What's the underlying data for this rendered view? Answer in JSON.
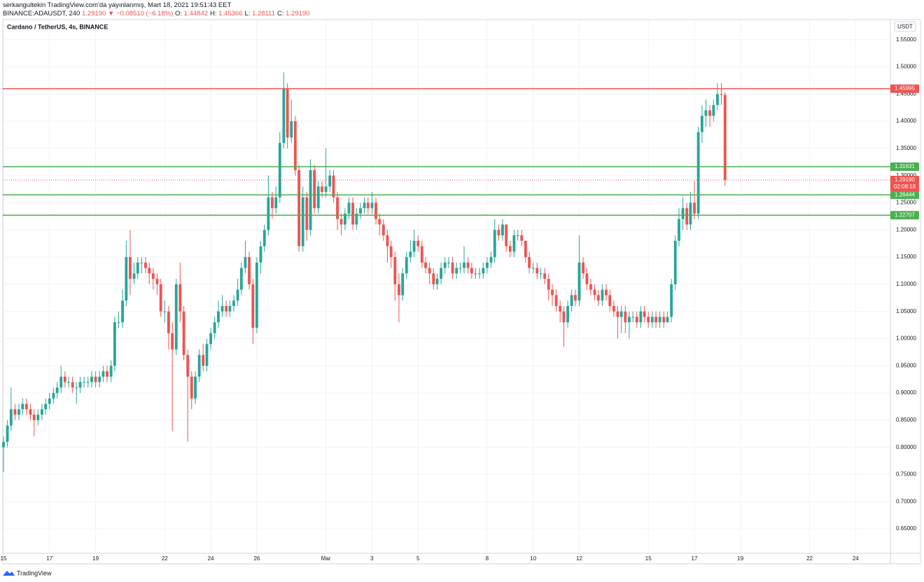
{
  "header": {
    "published": "serkangultekin TradingView.com'da yayınlanmış, Mart 18, 2021 19:51:43 EET",
    "symbol": "BINANCE:ADAUSDT, 240",
    "price": "1.29190",
    "change": "▼ −0.08510 (−6.18%)",
    "ohlc": [
      {
        "key": "O:",
        "value": "1.44842"
      },
      {
        "key": "H:",
        "value": "1.45366"
      },
      {
        "key": "L:",
        "value": "1.28111"
      },
      {
        "key": "C:",
        "value": "1.29190"
      }
    ]
  },
  "footer": {
    "brand": "TradingView"
  },
  "chart_data": {
    "type": "candlestick",
    "title": "Cardano / TetherUS, 4s, BINANCE",
    "unit": "USDT",
    "up_color": "#26a69a",
    "down_color": "#ef5350",
    "grid": true,
    "x": [
      15,
      15.17,
      15.33,
      15.5,
      15.67,
      15.83,
      16,
      16.17,
      16.33,
      16.5,
      16.67,
      16.83,
      17,
      17.17,
      17.33,
      17.5,
      17.67,
      17.83,
      18,
      18.17,
      18.33,
      18.5,
      18.67,
      18.83,
      19,
      19.17,
      19.33,
      19.5,
      19.67,
      19.83,
      20,
      20.17,
      20.33,
      20.5,
      20.67,
      20.83,
      21,
      21.17,
      21.33,
      21.5,
      21.67,
      21.83,
      22,
      22.17,
      22.33,
      22.5,
      22.67,
      22.83,
      23,
      23.17,
      23.33,
      23.5,
      23.67,
      23.83,
      24,
      24.17,
      24.33,
      24.5,
      24.67,
      24.83,
      25,
      25.17,
      25.33,
      25.5,
      25.67,
      25.83,
      26,
      26.17,
      26.33,
      26.5,
      26.67,
      26.83,
      27,
      27.17,
      27.33,
      27.5,
      27.67,
      27.83,
      28,
      28.17,
      28.33,
      28.5,
      28.67,
      28.83,
      29,
      29.17,
      29.33,
      29.5,
      29.67,
      29.83,
      30,
      30.17,
      30.33,
      30.5,
      30.67,
      30.83,
      31,
      31.17,
      31.33,
      31.5,
      31.67,
      31.83,
      32,
      32.17,
      32.33,
      32.5,
      32.67,
      32.83,
      33,
      33.17,
      33.33,
      33.5,
      33.67,
      33.83,
      34,
      34.17,
      34.33,
      34.5,
      34.67,
      34.83,
      35,
      35.17,
      35.33,
      35.5,
      35.67,
      35.83,
      36,
      36.17,
      36.33,
      36.5,
      36.67,
      36.83,
      37,
      37.17,
      37.33,
      37.5,
      37.67,
      37.83,
      38,
      38.17,
      38.33,
      38.5,
      38.67,
      38.83,
      39,
      39.17,
      39.33,
      39.5,
      39.67,
      39.83,
      40,
      40.17,
      40.33,
      40.5,
      40.67,
      40.83,
      41,
      41.17,
      41.33,
      41.5,
      41.67,
      41.83,
      42,
      42.17,
      42.33,
      42.5,
      42.67,
      42.83,
      43,
      43.17,
      43.33,
      43.5,
      43.67,
      43.83,
      44,
      44.17,
      44.33,
      44.5,
      44.67,
      44.83,
      45,
      45.17,
      45.33,
      45.5,
      45.67,
      45.83,
      46,
      46.17,
      46.33
    ],
    "open": [
      0.8,
      0.81,
      0.84,
      0.87,
      0.86,
      0.87,
      0.88,
      0.87,
      0.86,
      0.85,
      0.86,
      0.87,
      0.88,
      0.89,
      0.9,
      0.91,
      0.93,
      0.92,
      0.92,
      0.91,
      0.91,
      0.92,
      0.92,
      0.92,
      0.93,
      0.92,
      0.93,
      0.94,
      0.93,
      0.95,
      1.03,
      1.03,
      1.07,
      1.15,
      1.11,
      1.12,
      1.14,
      1.14,
      1.13,
      1.12,
      1.11,
      1.1,
      1.05,
      1.05,
      1.01,
      0.98,
      1.1,
      1.05,
      0.97,
      0.93,
      0.89,
      0.93,
      0.97,
      0.95,
      0.99,
      1.01,
      1.03,
      1.05,
      1.06,
      1.05,
      1.06,
      1.07,
      1.09,
      1.13,
      1.15,
      1.1,
      1.02,
      1.14,
      1.17,
      1.2,
      1.26,
      1.24,
      1.26,
      1.36,
      1.46,
      1.37,
      1.4,
      1.31,
      1.17,
      1.26,
      1.2,
      1.31,
      1.24,
      1.28,
      1.27,
      1.28,
      1.3,
      1.26,
      1.22,
      1.21,
      1.23,
      1.25,
      1.21,
      1.23,
      1.24,
      1.25,
      1.24,
      1.25,
      1.22,
      1.21,
      1.19,
      1.17,
      1.15,
      1.1,
      1.08,
      1.12,
      1.15,
      1.16,
      1.18,
      1.17,
      1.14,
      1.13,
      1.12,
      1.1,
      1.11,
      1.13,
      1.14,
      1.14,
      1.12,
      1.13,
      1.13,
      1.14,
      1.13,
      1.12,
      1.12,
      1.12,
      1.13,
      1.14,
      1.15,
      1.2,
      1.19,
      1.21,
      1.17,
      1.16,
      1.19,
      1.19,
      1.18,
      1.15,
      1.13,
      1.13,
      1.12,
      1.12,
      1.11,
      1.09,
      1.08,
      1.06,
      1.05,
      1.03,
      1.06,
      1.08,
      1.07,
      1.14,
      1.12,
      1.1,
      1.09,
      1.08,
      1.07,
      1.09,
      1.08,
      1.06,
      1.05,
      1.04,
      1.05,
      1.03,
      1.04,
      1.04,
      1.03,
      1.05,
      1.04,
      1.03,
      1.04,
      1.03,
      1.04,
      1.03,
      1.04,
      1.1,
      1.18,
      1.22,
      1.24,
      1.21,
      1.25,
      1.23,
      1.38,
      1.41,
      1.42,
      1.41,
      1.43,
      1.45,
      1.44842
    ],
    "high": [
      0.82,
      0.85,
      0.91,
      0.88,
      0.88,
      0.89,
      0.89,
      0.88,
      0.87,
      0.87,
      0.88,
      0.89,
      0.9,
      0.91,
      0.92,
      0.95,
      0.94,
      0.93,
      0.93,
      0.92,
      0.93,
      0.93,
      0.93,
      0.94,
      0.94,
      0.94,
      0.95,
      0.95,
      0.96,
      1.04,
      1.05,
      1.09,
      1.18,
      1.2,
      1.14,
      1.15,
      1.15,
      1.15,
      1.14,
      1.13,
      1.12,
      1.11,
      1.07,
      1.06,
      1.03,
      1.11,
      1.14,
      1.06,
      0.98,
      0.94,
      0.94,
      0.98,
      0.99,
      1.0,
      1.02,
      1.04,
      1.07,
      1.08,
      1.07,
      1.07,
      1.08,
      1.11,
      1.14,
      1.18,
      1.16,
      1.11,
      1.15,
      1.18,
      1.21,
      1.3,
      1.27,
      1.28,
      1.38,
      1.49,
      1.47,
      1.44,
      1.41,
      1.32,
      1.28,
      1.27,
      1.33,
      1.32,
      1.29,
      1.29,
      1.35,
      1.31,
      1.31,
      1.27,
      1.23,
      1.24,
      1.26,
      1.26,
      1.24,
      1.25,
      1.26,
      1.26,
      1.27,
      1.26,
      1.23,
      1.22,
      1.2,
      1.18,
      1.16,
      1.12,
      1.13,
      1.16,
      1.18,
      1.2,
      1.19,
      1.18,
      1.15,
      1.14,
      1.13,
      1.12,
      1.14,
      1.15,
      1.15,
      1.15,
      1.14,
      1.14,
      1.17,
      1.15,
      1.14,
      1.13,
      1.13,
      1.14,
      1.15,
      1.16,
      1.22,
      1.21,
      1.22,
      1.21,
      1.18,
      1.2,
      1.2,
      1.2,
      1.18,
      1.16,
      1.14,
      1.14,
      1.13,
      1.13,
      1.12,
      1.1,
      1.09,
      1.07,
      1.06,
      1.07,
      1.09,
      1.09,
      1.19,
      1.15,
      1.13,
      1.11,
      1.1,
      1.09,
      1.1,
      1.1,
      1.09,
      1.07,
      1.06,
      1.06,
      1.06,
      1.05,
      1.05,
      1.05,
      1.06,
      1.06,
      1.05,
      1.05,
      1.05,
      1.05,
      1.05,
      1.05,
      1.11,
      1.19,
      1.24,
      1.26,
      1.25,
      1.27,
      1.29,
      1.39,
      1.43,
      1.44,
      1.43,
      1.44,
      1.47,
      1.47,
      1.45366
    ],
    "low": [
      0.755,
      0.8,
      0.83,
      0.85,
      0.85,
      0.86,
      0.86,
      0.85,
      0.82,
      0.84,
      0.85,
      0.86,
      0.87,
      0.88,
      0.89,
      0.9,
      0.91,
      0.91,
      0.9,
      0.88,
      0.9,
      0.91,
      0.91,
      0.91,
      0.91,
      0.91,
      0.92,
      0.92,
      0.92,
      0.94,
      1.02,
      1.02,
      1.06,
      1.08,
      1.1,
      1.11,
      1.12,
      1.12,
      1.1,
      1.09,
      1.08,
      1.04,
      1.03,
      0.98,
      0.83,
      0.97,
      1.03,
      0.96,
      0.81,
      0.87,
      0.88,
      0.92,
      0.94,
      0.94,
      0.98,
      1.0,
      1.02,
      1.04,
      1.04,
      1.04,
      1.05,
      1.06,
      1.08,
      1.12,
      1.09,
      0.99,
      1.01,
      1.12,
      1.16,
      1.19,
      1.22,
      1.23,
      1.25,
      1.35,
      1.35,
      1.36,
      1.3,
      1.16,
      1.16,
      1.18,
      1.19,
      1.23,
      1.23,
      1.26,
      1.26,
      1.27,
      1.25,
      1.2,
      1.19,
      1.2,
      1.22,
      1.2,
      1.2,
      1.22,
      1.23,
      1.23,
      1.23,
      1.21,
      1.19,
      1.18,
      1.14,
      1.13,
      1.07,
      1.03,
      1.07,
      1.11,
      1.14,
      1.15,
      1.16,
      1.13,
      1.12,
      1.1,
      1.09,
      1.09,
      1.1,
      1.12,
      1.13,
      1.11,
      1.11,
      1.12,
      1.12,
      1.12,
      1.11,
      1.11,
      1.11,
      1.11,
      1.12,
      1.13,
      1.14,
      1.18,
      1.18,
      1.16,
      1.15,
      1.15,
      1.18,
      1.17,
      1.14,
      1.12,
      1.12,
      1.11,
      1.11,
      1.1,
      1.07,
      1.06,
      1.05,
      1.03,
      0.985,
      1.02,
      1.05,
      1.06,
      1.06,
      1.11,
      1.09,
      1.08,
      1.07,
      1.06,
      1.06,
      1.07,
      1.05,
      1.04,
      1.0,
      1.01,
      1.01,
      1.0,
      1.03,
      1.02,
      1.02,
      1.03,
      1.02,
      1.02,
      1.02,
      1.02,
      1.02,
      1.03,
      1.03,
      1.09,
      1.17,
      1.2,
      1.2,
      1.2,
      1.22,
      1.22,
      1.36,
      1.39,
      1.39,
      1.4,
      1.42,
      1.43,
      1.28111
    ],
    "close": [
      0.81,
      0.84,
      0.87,
      0.86,
      0.87,
      0.88,
      0.87,
      0.86,
      0.85,
      0.86,
      0.87,
      0.88,
      0.89,
      0.9,
      0.91,
      0.93,
      0.92,
      0.92,
      0.91,
      0.91,
      0.92,
      0.92,
      0.92,
      0.93,
      0.92,
      0.93,
      0.94,
      0.93,
      0.95,
      1.03,
      1.03,
      1.07,
      1.15,
      1.11,
      1.12,
      1.14,
      1.14,
      1.13,
      1.12,
      1.11,
      1.1,
      1.05,
      1.05,
      1.01,
      0.98,
      1.1,
      1.05,
      0.97,
      0.93,
      0.89,
      0.93,
      0.97,
      0.95,
      0.99,
      1.01,
      1.03,
      1.05,
      1.06,
      1.05,
      1.06,
      1.07,
      1.09,
      1.13,
      1.15,
      1.1,
      1.02,
      1.14,
      1.17,
      1.2,
      1.26,
      1.24,
      1.26,
      1.36,
      1.46,
      1.37,
      1.4,
      1.31,
      1.17,
      1.26,
      1.2,
      1.31,
      1.24,
      1.28,
      1.27,
      1.28,
      1.3,
      1.26,
      1.22,
      1.21,
      1.23,
      1.25,
      1.21,
      1.23,
      1.24,
      1.25,
      1.24,
      1.25,
      1.22,
      1.21,
      1.19,
      1.17,
      1.15,
      1.1,
      1.08,
      1.12,
      1.15,
      1.16,
      1.18,
      1.17,
      1.14,
      1.13,
      1.12,
      1.1,
      1.11,
      1.13,
      1.14,
      1.14,
      1.12,
      1.13,
      1.13,
      1.14,
      1.13,
      1.12,
      1.12,
      1.12,
      1.13,
      1.14,
      1.15,
      1.2,
      1.19,
      1.21,
      1.17,
      1.16,
      1.19,
      1.19,
      1.18,
      1.15,
      1.13,
      1.13,
      1.12,
      1.12,
      1.11,
      1.09,
      1.08,
      1.06,
      1.05,
      1.03,
      1.06,
      1.08,
      1.07,
      1.14,
      1.12,
      1.1,
      1.09,
      1.08,
      1.07,
      1.09,
      1.08,
      1.06,
      1.05,
      1.04,
      1.05,
      1.03,
      1.04,
      1.04,
      1.03,
      1.05,
      1.04,
      1.03,
      1.04,
      1.03,
      1.04,
      1.03,
      1.04,
      1.1,
      1.18,
      1.22,
      1.24,
      1.21,
      1.25,
      1.23,
      1.38,
      1.41,
      1.42,
      1.41,
      1.43,
      1.45,
      1.44842,
      1.2919
    ],
    "xlim": [
      14.97,
      53.51
    ],
    "xticks": [
      15,
      17,
      19,
      22,
      24,
      26,
      {
        "value": 29,
        "label": "Mar"
      },
      {
        "value": 31,
        "label": "3"
      },
      {
        "value": 33,
        "label": "5"
      },
      {
        "value": 36,
        "label": "8"
      },
      {
        "value": 38,
        "label": "10"
      },
      {
        "value": 40,
        "label": "12"
      },
      {
        "value": 43,
        "label": "15"
      },
      {
        "value": 45,
        "label": "17"
      },
      {
        "value": 47,
        "label": "19"
      },
      {
        "value": 50,
        "label": "22"
      },
      {
        "value": 52,
        "label": "24"
      }
    ],
    "ylim": [
      0.605,
      1.587
    ],
    "yticks": [
      {
        "value": 0.65,
        "label": "0.65000"
      },
      {
        "value": 0.7,
        "label": "0.70000"
      },
      {
        "value": 0.75,
        "label": "0.75000"
      },
      {
        "value": 0.8,
        "label": "0.80000"
      },
      {
        "value": 0.85,
        "label": "0.85000"
      },
      {
        "value": 0.9,
        "label": "0.90000"
      },
      {
        "value": 0.95,
        "label": "0.95000"
      },
      {
        "value": 1.0,
        "label": "1.00000"
      },
      {
        "value": 1.05,
        "label": "1.05000"
      },
      {
        "value": 1.1,
        "label": "1.10000"
      },
      {
        "value": 1.15,
        "label": "1.15000"
      },
      {
        "value": 1.2,
        "label": "1.20000"
      },
      {
        "value": 1.25,
        "label": "1.25000"
      },
      {
        "value": 1.3,
        "label": "1.30000"
      },
      {
        "value": 1.35,
        "label": "1.35000"
      },
      {
        "value": 1.4,
        "label": "1.40000"
      },
      {
        "value": 1.45,
        "label": "1.45000"
      },
      {
        "value": 1.5,
        "label": "1.50000"
      },
      {
        "value": 1.55,
        "label": "1.55000"
      }
    ],
    "hlines": [
      {
        "value": 1.45995,
        "color": "#ef5350"
      },
      {
        "value": 1.31631,
        "color": "#4caf50"
      },
      {
        "value": 1.26444,
        "color": "#4caf50"
      },
      {
        "value": 1.22707,
        "color": "#4caf50"
      }
    ],
    "last_price": {
      "value": 1.2919,
      "label": "1.29190",
      "countdown": "02:08:18",
      "color": "#ef5350"
    }
  }
}
